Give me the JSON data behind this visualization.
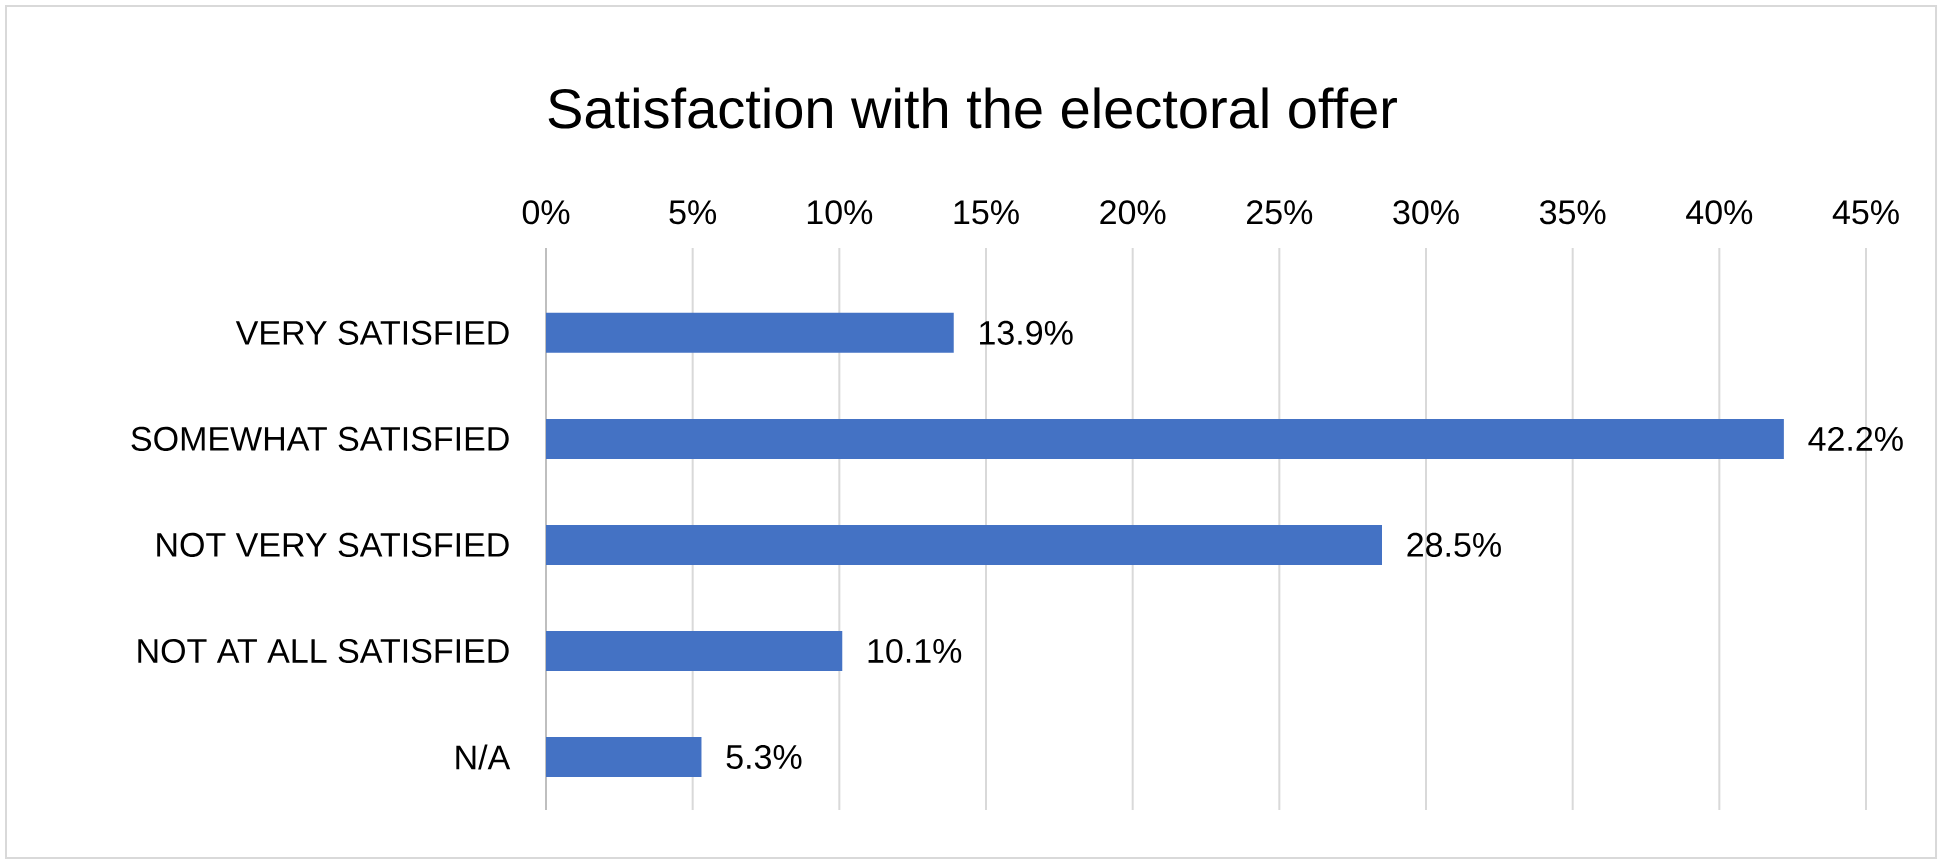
{
  "chart_data": {
    "type": "bar",
    "orientation": "horizontal",
    "title": "Satisfaction with the electoral offer",
    "categories": [
      "VERY SATISFIED",
      "SOMEWHAT SATISFIED",
      "NOT VERY SATISFIED",
      "NOT AT ALL SATISFIED",
      "N/A"
    ],
    "values": [
      13.9,
      42.2,
      28.5,
      10.1,
      5.3
    ],
    "value_labels": [
      "13.9%",
      "42.2%",
      "28.5%",
      "10.1%",
      "5.3%"
    ],
    "color": "#4472c4",
    "grid": "x",
    "xlim": [
      0,
      45
    ],
    "xticks": [
      {
        "value": 0,
        "label": "0%"
      },
      {
        "value": 5,
        "label": "5%"
      },
      {
        "value": 10,
        "label": "10%"
      },
      {
        "value": 15,
        "label": "15%"
      },
      {
        "value": 20,
        "label": "20%"
      },
      {
        "value": 25,
        "label": "25%"
      },
      {
        "value": 30,
        "label": "30%"
      },
      {
        "value": 35,
        "label": "35%"
      },
      {
        "value": 40,
        "label": "40%"
      },
      {
        "value": 45,
        "label": "45%"
      }
    ]
  }
}
